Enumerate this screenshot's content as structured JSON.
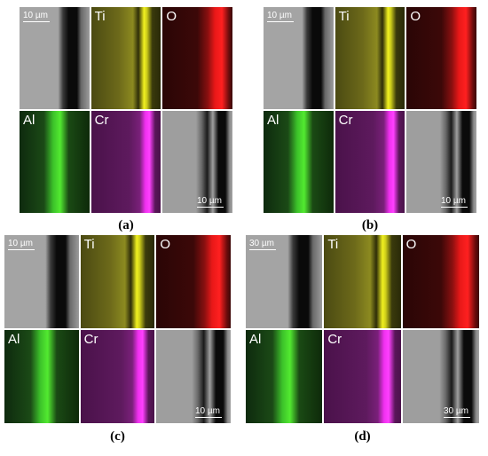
{
  "panels": [
    {
      "caption": "(a)",
      "maps": [
        "Ti",
        "O",
        "Al",
        "Cr"
      ],
      "scale_bars": [
        "10 µm",
        "10 µm"
      ]
    },
    {
      "caption": "(b)",
      "maps": [
        "Ti",
        "O",
        "Al",
        "Cr"
      ],
      "scale_bars": [
        "10 µm",
        "10 µm"
      ]
    },
    {
      "caption": "(c)",
      "maps": [
        "Ti",
        "O",
        "Al",
        "Cr"
      ],
      "scale_bars": [
        "10 µm",
        "10 µm"
      ]
    },
    {
      "caption": "(d)",
      "maps": [
        "Ti",
        "O",
        "Al",
        "Cr"
      ],
      "scale_bars": [
        "30 µm",
        "30 µm"
      ]
    }
  ]
}
